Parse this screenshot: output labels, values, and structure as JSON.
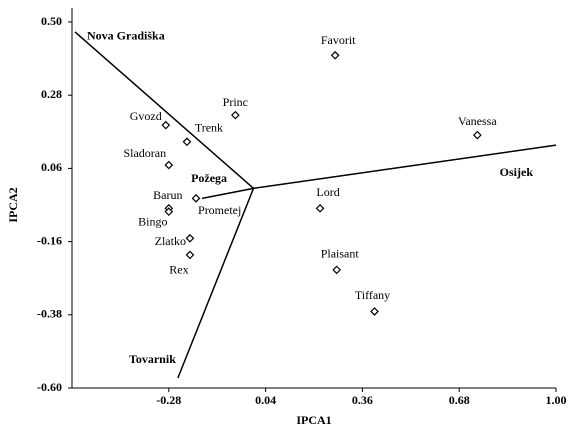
{
  "chart_data": {
    "type": "scatter",
    "x_label": "IPCA1",
    "y_label": "IPCA2",
    "xlim": [
      -0.6,
      1.0
    ],
    "xticks": [
      -0.28,
      0.04,
      0.36,
      0.68,
      {
        "value": 1,
        "label": "1.00"
      }
    ],
    "ylim": [
      -0.6,
      0.5
    ],
    "yticks": [
      {
        "value": 0.5,
        "label": "0.50"
      },
      0.28,
      0.06,
      -0.16,
      -0.38,
      {
        "value": -0.6,
        "label": "-0.60"
      }
    ],
    "points": [
      {
        "label": "Favorit",
        "x": 0.27,
        "y": 0.4
      },
      {
        "label": "Princ",
        "x": -0.06,
        "y": 0.22
      },
      {
        "label": "Vanessa",
        "x": 0.74,
        "y": 0.16
      },
      {
        "label": "Gvozd",
        "x": -0.29,
        "y": 0.19
      },
      {
        "label": "Trenk",
        "x": -0.22,
        "y": 0.14
      },
      {
        "label": "Sladoran",
        "x": -0.28,
        "y": 0.07
      },
      {
        "label": "Barun",
        "x": -0.28,
        "y": -0.06
      },
      {
        "label": "Bingo",
        "x": -0.28,
        "y": -0.07
      },
      {
        "label": "Prometej",
        "x": -0.19,
        "y": -0.03
      },
      {
        "label": "Zlatko",
        "x": -0.21,
        "y": -0.15
      },
      {
        "label": "Rex",
        "x": -0.21,
        "y": -0.2
      },
      {
        "label": "Lord",
        "x": 0.22,
        "y": -0.06
      },
      {
        "label": "Plaisant",
        "x": 0.275,
        "y": -0.245
      },
      {
        "label": "Tiffany",
        "x": 0.4,
        "y": -0.37
      }
    ],
    "vectors": [
      {
        "label": "Nova Gradiška",
        "x": -0.59,
        "y": 0.47
      },
      {
        "label": "Osijek",
        "x": 1.0,
        "y": 0.13
      },
      {
        "label": "Požega",
        "x": -0.17,
        "y": -0.03
      },
      {
        "label": "Tovarnik",
        "x": -0.25,
        "y": -0.57
      }
    ]
  }
}
